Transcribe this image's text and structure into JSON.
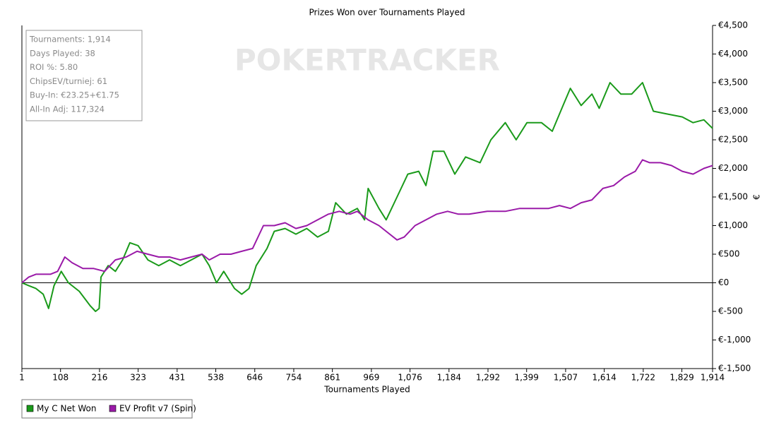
{
  "chart_data": {
    "type": "line",
    "title": "Prizes Won over Tournaments Played",
    "x_label": "Tournaments Played",
    "y_label": "€",
    "watermark": "POKERTRACKER",
    "stats": [
      "Tournaments: 1,914",
      "Days Played: 38",
      "ROI %: 5.80",
      "ChipsEV/turniej: 61",
      "Buy-In: €23.25+€1.75",
      "All-In Adj: 117,324"
    ],
    "xlim": [
      1,
      1914
    ],
    "ylim": [
      -1500,
      4500
    ],
    "xticks": [
      1,
      108,
      216,
      323,
      431,
      538,
      646,
      754,
      861,
      969,
      {
        "value": 1076,
        "label": "1,076"
      },
      {
        "value": 1184,
        "label": "1,184"
      },
      {
        "value": 1292,
        "label": "1,292"
      },
      {
        "value": 1399,
        "label": "1,399"
      },
      {
        "value": 1507,
        "label": "1,507"
      },
      {
        "value": 1614,
        "label": "1,614"
      },
      {
        "value": 1722,
        "label": "1,722"
      },
      {
        "value": 1829,
        "label": "1,829"
      },
      {
        "value": 1914,
        "label": "1,914"
      }
    ],
    "yticks": [
      {
        "value": 4500,
        "label": "€4,500"
      },
      {
        "value": 4000,
        "label": "€4,000"
      },
      {
        "value": 3500,
        "label": "€3,500"
      },
      {
        "value": 3000,
        "label": "€3,000"
      },
      {
        "value": 2500,
        "label": "€2,500"
      },
      {
        "value": 2000,
        "label": "€2,000"
      },
      {
        "value": 1500,
        "label": "€1,500"
      },
      {
        "value": 1000,
        "label": "€1,000"
      },
      {
        "value": 500,
        "label": "€500"
      },
      {
        "value": 0,
        "label": "€0"
      },
      {
        "value": -500,
        "label": "€-500"
      },
      {
        "value": -1000,
        "label": "€-1,000"
      },
      {
        "value": -1500,
        "label": "€-1,500"
      }
    ],
    "series": [
      {
        "name": "My C Net Won",
        "color": "#1a9a1a",
        "x": [
          1,
          20,
          40,
          60,
          75,
          90,
          110,
          130,
          160,
          190,
          205,
          215,
          220,
          240,
          260,
          280,
          300,
          323,
          350,
          380,
          410,
          440,
          470,
          500,
          520,
          540,
          560,
          590,
          610,
          630,
          650,
          680,
          700,
          730,
          760,
          790,
          820,
          850,
          870,
          900,
          930,
          950,
          960,
          990,
          1010,
          1040,
          1070,
          1100,
          1120,
          1140,
          1170,
          1200,
          1230,
          1270,
          1300,
          1340,
          1370,
          1400,
          1440,
          1470,
          1500,
          1520,
          1550,
          1580,
          1600,
          1630,
          1660,
          1690,
          1720,
          1750,
          1790,
          1830,
          1860,
          1890,
          1914
        ],
        "values": [
          0,
          -50,
          -100,
          -200,
          -450,
          -50,
          200,
          0,
          -150,
          -400,
          -500,
          -450,
          100,
          300,
          200,
          400,
          700,
          650,
          400,
          300,
          400,
          300,
          400,
          500,
          300,
          0,
          200,
          -100,
          -200,
          -100,
          300,
          600,
          900,
          950,
          850,
          950,
          800,
          900,
          1400,
          1200,
          1300,
          1100,
          1650,
          1300,
          1100,
          1500,
          1900,
          1950,
          1700,
          2300,
          2300,
          1900,
          2200,
          2100,
          2500,
          2800,
          2500,
          2800,
          2800,
          2650,
          3100,
          3400,
          3100,
          3300,
          3050,
          3500,
          3300,
          3300,
          3500,
          3000,
          2950,
          2900,
          2800,
          2850,
          2700
        ]
      },
      {
        "name": "EV Profit v7 (Spin)",
        "color": "#9a1aa8",
        "x": [
          1,
          20,
          40,
          60,
          80,
          100,
          120,
          140,
          170,
          200,
          230,
          260,
          290,
          320,
          350,
          380,
          410,
          440,
          470,
          500,
          520,
          550,
          580,
          610,
          640,
          670,
          700,
          730,
          760,
          790,
          820,
          850,
          880,
          910,
          930,
          960,
          990,
          1010,
          1040,
          1060,
          1090,
          1120,
          1150,
          1180,
          1210,
          1240,
          1290,
          1340,
          1380,
          1420,
          1460,
          1490,
          1520,
          1550,
          1580,
          1610,
          1640,
          1670,
          1700,
          1720,
          1740,
          1770,
          1800,
          1830,
          1860,
          1890,
          1914
        ],
        "values": [
          0,
          100,
          150,
          150,
          150,
          200,
          450,
          350,
          250,
          250,
          200,
          400,
          450,
          550,
          500,
          450,
          450,
          400,
          450,
          500,
          400,
          500,
          500,
          550,
          600,
          1000,
          1000,
          1050,
          950,
          1000,
          1100,
          1200,
          1250,
          1200,
          1250,
          1100,
          1000,
          900,
          750,
          800,
          1000,
          1100,
          1200,
          1250,
          1200,
          1200,
          1250,
          1250,
          1300,
          1300,
          1300,
          1350,
          1300,
          1400,
          1450,
          1650,
          1700,
          1850,
          1950,
          2150,
          2100,
          2100,
          2050,
          1950,
          1900,
          2000,
          2050
        ]
      }
    ]
  }
}
